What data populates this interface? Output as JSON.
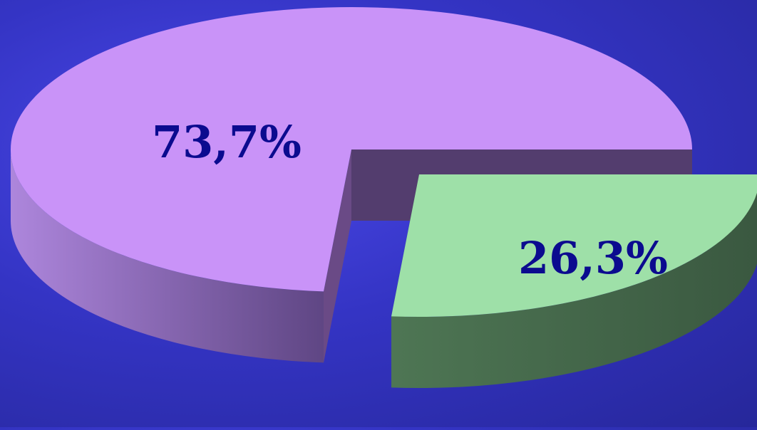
{
  "chart_data": {
    "type": "pie",
    "style": "3d-exploded",
    "slices": [
      {
        "value": 73.7,
        "label": "73,7%",
        "color": "#c993f8",
        "side_color": "#8a62b8"
      },
      {
        "value": 26.3,
        "label": "26,3%",
        "color": "#9ee0a8",
        "side_color": "#466a4c"
      }
    ],
    "label_color": "#0b0b8f",
    "background_color": "#3a3ad6"
  }
}
